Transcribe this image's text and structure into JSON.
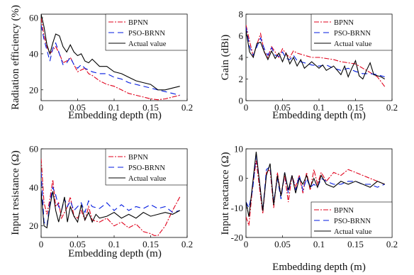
{
  "chart_data": [
    {
      "type": "line",
      "xlabel": "Embedding depth (m)",
      "ylabel": "Radiation efficiency (%)",
      "xlim": [
        0,
        0.2
      ],
      "ylim": [
        14,
        62
      ],
      "xticks": [
        0,
        0.05,
        0.1,
        0.15,
        0.2
      ],
      "xtick_labels": [
        "0",
        "0.05",
        "0.1",
        "0.15",
        "0.2"
      ],
      "yticks": [
        20,
        40,
        60
      ],
      "ytick_labels": [
        "20",
        "40",
        "60"
      ],
      "legend_position": "top-right",
      "grid": false,
      "series": [
        {
          "name": "BPNN",
          "color": "#e0001b",
          "dash": "7,2,2,2",
          "x": [
            0,
            0.004,
            0.008,
            0.012,
            0.016,
            0.02,
            0.025,
            0.03,
            0.035,
            0.04,
            0.045,
            0.05,
            0.055,
            0.06,
            0.065,
            0.07,
            0.08,
            0.09,
            0.1,
            0.11,
            0.12,
            0.13,
            0.14,
            0.15,
            0.16,
            0.17,
            0.18,
            0.19
          ],
          "y": [
            60,
            50,
            44,
            40,
            42,
            44,
            40,
            35,
            36,
            38,
            34,
            30,
            31,
            32,
            29,
            28,
            25,
            23,
            22,
            20,
            18,
            17,
            16,
            15,
            14.5,
            15,
            16,
            17
          ]
        },
        {
          "name": "PSO-BRNN",
          "color": "#0019e0",
          "dash": "8,5",
          "x": [
            0,
            0.004,
            0.008,
            0.012,
            0.016,
            0.02,
            0.025,
            0.03,
            0.035,
            0.04,
            0.045,
            0.05,
            0.055,
            0.06,
            0.065,
            0.07,
            0.08,
            0.09,
            0.1,
            0.11,
            0.12,
            0.13,
            0.14,
            0.15,
            0.16,
            0.17,
            0.18,
            0.19
          ],
          "y": [
            56,
            48,
            42,
            36,
            43,
            46,
            40,
            34,
            35,
            38,
            34,
            32,
            34,
            32,
            31,
            30,
            29,
            29,
            27,
            26,
            24,
            23,
            22,
            21,
            20,
            19,
            18,
            17
          ]
        },
        {
          "name": "Actual value",
          "color": "#000000",
          "dash": "",
          "x": [
            0,
            0.004,
            0.008,
            0.012,
            0.016,
            0.02,
            0.025,
            0.03,
            0.035,
            0.04,
            0.045,
            0.05,
            0.055,
            0.06,
            0.065,
            0.07,
            0.075,
            0.08,
            0.09,
            0.1,
            0.11,
            0.12,
            0.13,
            0.14,
            0.15,
            0.16,
            0.17,
            0.18,
            0.19
          ],
          "y": [
            62,
            55,
            45,
            40,
            46,
            51,
            50,
            44,
            41,
            45,
            41,
            39,
            40,
            36,
            35,
            37,
            35,
            33,
            33,
            30,
            29,
            27,
            25,
            24,
            23,
            20,
            20,
            21,
            22
          ]
        }
      ]
    },
    {
      "type": "line",
      "xlabel": "Embedding depth (m)",
      "ylabel": "Gain (dBi)",
      "xlim": [
        0,
        0.2
      ],
      "ylim": [
        0,
        8
      ],
      "xticks": [
        0,
        0.05,
        0.1,
        0.15,
        0.2
      ],
      "xtick_labels": [
        "0",
        "0.05",
        "0.1",
        "0.15",
        "0.2"
      ],
      "yticks": [
        0,
        2,
        4,
        6,
        8
      ],
      "ytick_labels": [
        "0",
        "2",
        "4",
        "6",
        "8"
      ],
      "legend_position": "top-right",
      "grid": false,
      "series": [
        {
          "name": "BPNN",
          "color": "#e0001b",
          "dash": "7,2,2,2",
          "x": [
            0,
            0.005,
            0.01,
            0.015,
            0.02,
            0.025,
            0.03,
            0.035,
            0.04,
            0.045,
            0.05,
            0.055,
            0.06,
            0.065,
            0.07,
            0.08,
            0.09,
            0.1,
            0.11,
            0.12,
            0.13,
            0.14,
            0.15,
            0.16,
            0.17,
            0.18,
            0.19
          ],
          "y": [
            7,
            5.5,
            4.1,
            5.2,
            6.2,
            4.5,
            4.0,
            5.0,
            4.5,
            4.0,
            4.8,
            4.3,
            4.0,
            4.6,
            4.4,
            4.2,
            4.0,
            4.0,
            3.9,
            3.8,
            3.6,
            3.5,
            3.4,
            3.0,
            2.6,
            2.2,
            1.3
          ]
        },
        {
          "name": "PSO-BRNN",
          "color": "#0019e0",
          "dash": "8,5",
          "x": [
            0,
            0.005,
            0.01,
            0.015,
            0.02,
            0.025,
            0.03,
            0.035,
            0.04,
            0.045,
            0.05,
            0.055,
            0.06,
            0.065,
            0.07,
            0.08,
            0.09,
            0.1,
            0.11,
            0.12,
            0.13,
            0.14,
            0.15,
            0.16,
            0.17,
            0.18,
            0.19
          ],
          "y": [
            6.8,
            5.0,
            4.2,
            5.0,
            5.8,
            4.8,
            4.2,
            4.9,
            4.2,
            4.1,
            4.5,
            3.9,
            3.8,
            4.2,
            3.7,
            3.5,
            3.3,
            3.2,
            3.3,
            3.0,
            2.8,
            3.0,
            2.7,
            2.5,
            2.5,
            2.4,
            2.2
          ]
        },
        {
          "name": "Actual value",
          "color": "#000000",
          "dash": "",
          "x": [
            0,
            0.005,
            0.01,
            0.015,
            0.02,
            0.025,
            0.03,
            0.035,
            0.04,
            0.045,
            0.05,
            0.055,
            0.06,
            0.065,
            0.07,
            0.075,
            0.08,
            0.09,
            0.1,
            0.105,
            0.11,
            0.12,
            0.13,
            0.135,
            0.14,
            0.145,
            0.15,
            0.155,
            0.16,
            0.165,
            0.17,
            0.175,
            0.18,
            0.185,
            0.19
          ],
          "y": [
            6.5,
            4.5,
            4.0,
            5.3,
            5.4,
            4.5,
            3.8,
            4.6,
            3.9,
            4.4,
            3.6,
            4.4,
            3.4,
            4.0,
            3.2,
            3.8,
            3.0,
            3.6,
            3.0,
            3.3,
            2.8,
            3.2,
            2.4,
            3.2,
            2.2,
            3.0,
            3.7,
            2.3,
            2.0,
            2.8,
            3.5,
            2.4,
            2.3,
            2.2,
            2.0
          ]
        }
      ]
    },
    {
      "type": "line",
      "xlabel": "Embedding depth (m)",
      "ylabel": "Input resistance (Ω)",
      "xlim": [
        0,
        0.2
      ],
      "ylim": [
        14,
        60
      ],
      "xticks": [
        0,
        0.05,
        0.1,
        0.15,
        0.2
      ],
      "xtick_labels": [
        "0",
        "0.05",
        "0.1",
        "0.15",
        "0.2"
      ],
      "yticks": [
        20,
        40,
        60
      ],
      "ytick_labels": [
        "20",
        "40",
        "60"
      ],
      "legend_position": "top-right",
      "grid": false,
      "series": [
        {
          "name": "BPNN",
          "color": "#e0001b",
          "dash": "7,2,2,2",
          "x": [
            0,
            0.004,
            0.008,
            0.012,
            0.016,
            0.02,
            0.024,
            0.028,
            0.032,
            0.036,
            0.04,
            0.045,
            0.05,
            0.055,
            0.06,
            0.065,
            0.07,
            0.08,
            0.09,
            0.1,
            0.11,
            0.12,
            0.13,
            0.14,
            0.15,
            0.155,
            0.16,
            0.17,
            0.18,
            0.19
          ],
          "y": [
            55,
            32,
            26,
            34,
            44,
            30,
            32,
            24,
            27,
            30,
            35,
            25,
            24,
            28,
            23,
            30,
            23,
            22,
            24,
            20,
            22,
            19,
            21,
            17,
            16,
            15,
            15,
            20,
            28,
            35
          ]
        },
        {
          "name": "PSO-BRNN",
          "color": "#0019e0",
          "dash": "8,5",
          "x": [
            0,
            0.004,
            0.008,
            0.012,
            0.016,
            0.02,
            0.024,
            0.028,
            0.032,
            0.036,
            0.04,
            0.045,
            0.05,
            0.055,
            0.06,
            0.065,
            0.07,
            0.08,
            0.09,
            0.1,
            0.11,
            0.12,
            0.13,
            0.14,
            0.15,
            0.16,
            0.17,
            0.18,
            0.19
          ],
          "y": [
            48,
            22,
            20,
            32,
            40,
            36,
            30,
            28,
            34,
            30,
            33,
            28,
            30,
            32,
            27,
            33,
            30,
            29,
            32,
            28,
            31,
            28,
            30,
            29,
            31,
            29,
            30,
            27,
            28
          ]
        },
        {
          "name": "Actual value",
          "color": "#000000",
          "dash": "",
          "x": [
            0,
            0.004,
            0.008,
            0.012,
            0.016,
            0.02,
            0.024,
            0.028,
            0.032,
            0.036,
            0.04,
            0.045,
            0.05,
            0.055,
            0.06,
            0.065,
            0.07,
            0.075,
            0.08,
            0.09,
            0.1,
            0.11,
            0.12,
            0.13,
            0.14,
            0.15,
            0.16,
            0.17,
            0.18,
            0.19
          ],
          "y": [
            38,
            20,
            19,
            30,
            38,
            28,
            22,
            28,
            35,
            22,
            30,
            25,
            22,
            31,
            23,
            27,
            22,
            26,
            24,
            25,
            27,
            24,
            26,
            24,
            27,
            25,
            26,
            27,
            26,
            28
          ]
        }
      ]
    },
    {
      "type": "line",
      "xlabel": "Embedding depth (m)",
      "ylabel": "Input reactance (Ω)",
      "xlim": [
        0,
        0.2
      ],
      "ylim": [
        -20,
        10
      ],
      "xticks": [
        0,
        0.05,
        0.1,
        0.15,
        0.2
      ],
      "xtick_labels": [
        "0",
        "0.05",
        "0.1",
        "0.15",
        "0.2"
      ],
      "yticks": [
        -20,
        -10,
        0,
        10
      ],
      "ytick_labels": [
        "-20",
        "-10",
        "0",
        "10"
      ],
      "legend_position": "bottom-right",
      "grid": false,
      "series": [
        {
          "name": "BPNN",
          "color": "#e0001b",
          "dash": "7,2,2,2",
          "x": [
            0,
            0.004,
            0.009,
            0.014,
            0.018,
            0.023,
            0.028,
            0.033,
            0.038,
            0.043,
            0.048,
            0.053,
            0.058,
            0.063,
            0.068,
            0.073,
            0.078,
            0.083,
            0.088,
            0.093,
            0.098,
            0.103,
            0.11,
            0.12,
            0.13,
            0.14,
            0.15,
            0.16,
            0.17,
            0.18,
            0.19
          ],
          "y": [
            -13,
            -16,
            -3,
            6,
            -2,
            -12,
            2,
            3,
            -10,
            2,
            -6,
            1,
            -8,
            1,
            -3,
            1,
            -5,
            2,
            -4,
            3,
            -2,
            2,
            -1,
            2,
            1,
            3,
            2,
            1,
            0,
            -1,
            -2
          ]
        },
        {
          "name": "PSO-BRNN",
          "color": "#0019e0",
          "dash": "8,5",
          "x": [
            0,
            0.004,
            0.009,
            0.014,
            0.018,
            0.023,
            0.028,
            0.033,
            0.038,
            0.043,
            0.048,
            0.053,
            0.058,
            0.063,
            0.068,
            0.073,
            0.078,
            0.083,
            0.088,
            0.093,
            0.098,
            0.103,
            0.11,
            0.12,
            0.13,
            0.14,
            0.15,
            0.16,
            0.17,
            0.18,
            0.19
          ],
          "y": [
            -8,
            -10,
            -4,
            8,
            0,
            -11,
            3,
            4,
            -8,
            0,
            -7,
            2,
            -5,
            1,
            -4,
            1,
            -4,
            0,
            -3,
            -2,
            -3,
            0,
            -1,
            -2,
            -2,
            -1,
            -1,
            -2,
            -2,
            -3,
            -2
          ]
        },
        {
          "name": "Actual value",
          "color": "#000000",
          "dash": "",
          "x": [
            0,
            0.004,
            0.009,
            0.014,
            0.018,
            0.023,
            0.028,
            0.033,
            0.038,
            0.043,
            0.048,
            0.053,
            0.058,
            0.063,
            0.068,
            0.073,
            0.078,
            0.083,
            0.088,
            0.093,
            0.098,
            0.103,
            0.11,
            0.12,
            0.13,
            0.14,
            0.15,
            0.16,
            0.17,
            0.18,
            0.19
          ],
          "y": [
            -8,
            -13,
            -2,
            9,
            0,
            -11,
            1,
            5,
            -9,
            1,
            -6,
            2,
            -4,
            1,
            -5,
            0,
            -2,
            1,
            -3,
            0,
            -3,
            1,
            -2,
            -3,
            -1,
            -2,
            -1,
            -2,
            -3,
            -1,
            -2
          ]
        }
      ]
    }
  ]
}
